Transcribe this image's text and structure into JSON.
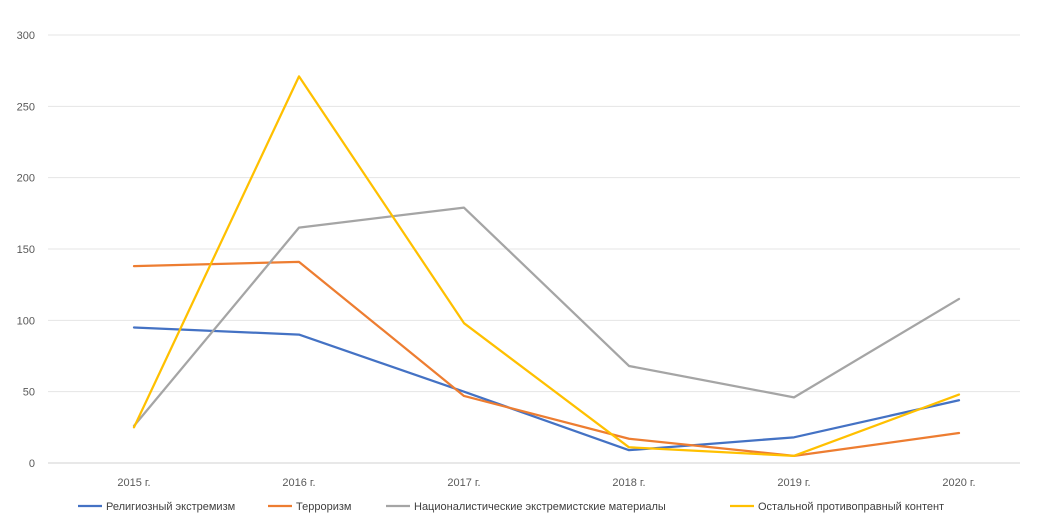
{
  "chart_data": {
    "type": "line",
    "title": "",
    "xlabel": "",
    "ylabel": "",
    "categories": [
      "2015 г.",
      "2016 г.",
      "2017 г.",
      "2018 г.",
      "2019 г.",
      "2020 г."
    ],
    "ylim": [
      0,
      300
    ],
    "yticks": [
      0,
      50,
      100,
      150,
      200,
      250,
      300
    ],
    "grid": true,
    "legend_position": "bottom",
    "series": [
      {
        "name": "Религиозный экстремизм",
        "color": "#4472c4",
        "values": [
          95,
          90,
          50,
          9,
          18,
          44
        ]
      },
      {
        "name": "Терроризм",
        "color": "#ed7d31",
        "values": [
          138,
          141,
          47,
          17,
          5,
          21
        ]
      },
      {
        "name": "Националистические экстремистские материалы",
        "color": "#a5a5a5",
        "values": [
          26,
          165,
          179,
          68,
          46,
          115
        ]
      },
      {
        "name": "Остальной противоправный контент",
        "color": "#ffc000",
        "values": [
          25,
          271,
          98,
          11,
          5,
          48
        ]
      }
    ]
  }
}
